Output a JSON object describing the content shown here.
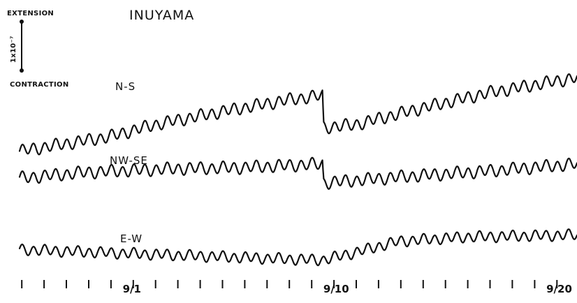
{
  "chart_data": {
    "type": "line",
    "title": "INUYAMA",
    "scale_bar": {
      "top_label": "EXTENSION",
      "bottom_label": "CONTRACTION",
      "value_label": "1x10⁻⁷"
    },
    "xlim": [
      0,
      25
    ],
    "x_tick_labels": [
      {
        "day": 5,
        "label": "9/1"
      },
      {
        "day": 14,
        "label": "9/10"
      },
      {
        "day": 24,
        "label": "9/20"
      }
    ],
    "minor_tick_interval_days": 1,
    "series": [
      {
        "name": "N-S",
        "wave_amplitude": 0.45,
        "wave_period_days": 0.5,
        "trend": [
          [
            0,
            -5.2
          ],
          [
            4,
            -4.0
          ],
          [
            6,
            -3.0
          ],
          [
            9,
            -1.9
          ],
          [
            12,
            -0.9
          ],
          [
            13.6,
            -0.5
          ],
          [
            13.62,
            -3.2
          ],
          [
            15,
            -3.0
          ],
          [
            18,
            -1.6
          ],
          [
            21,
            -0.3
          ],
          [
            25,
            1.0
          ]
        ]
      },
      {
        "name": "NW-SE",
        "wave_amplitude": 0.45,
        "wave_period_days": 0.5,
        "trend": [
          [
            0,
            -0.6
          ],
          [
            3,
            -0.1
          ],
          [
            7,
            0.2
          ],
          [
            10,
            0.3
          ],
          [
            13.6,
            0.6
          ],
          [
            13.62,
            -1.0
          ],
          [
            17,
            -0.5
          ],
          [
            21,
            0.0
          ],
          [
            25,
            0.6
          ]
        ]
      },
      {
        "name": "E-W",
        "wave_amplitude": 0.45,
        "wave_period_days": 0.5,
        "trend": [
          [
            0,
            -0.3
          ],
          [
            4,
            -0.6
          ],
          [
            8,
            -0.9
          ],
          [
            12,
            -1.2
          ],
          [
            13.6,
            -1.3
          ],
          [
            15,
            -0.6
          ],
          [
            17,
            0.5
          ],
          [
            20,
            0.9
          ],
          [
            25,
            1.1
          ]
        ]
      }
    ]
  }
}
